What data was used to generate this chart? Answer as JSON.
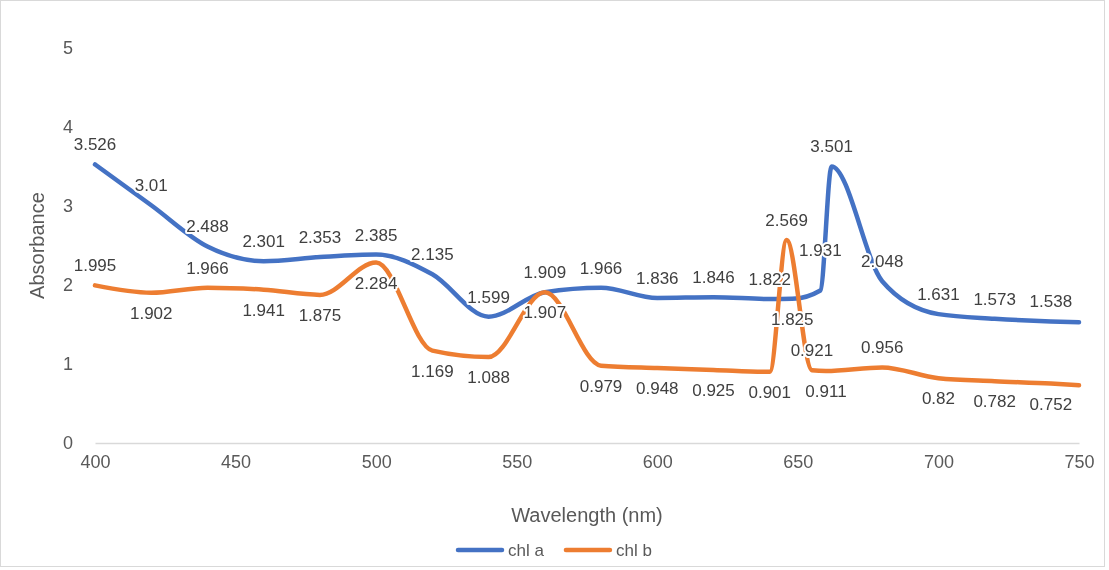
{
  "chart_data": {
    "type": "line",
    "xlabel": "Wavelength (nm)",
    "ylabel": "Absorbance",
    "xlim": [
      400,
      750
    ],
    "xticks": [
      400,
      450,
      500,
      550,
      600,
      650,
      700,
      750
    ],
    "ylim": [
      0,
      5
    ],
    "yticks": [
      0,
      1,
      2,
      3,
      4,
      5
    ],
    "grid": false,
    "legend": "bottom",
    "marker": "none",
    "line_style": "solid",
    "series": [
      {
        "name": "chl a",
        "color": "#4472c4",
        "x": [
          400,
          420,
          440,
          460,
          480,
          500,
          520,
          540,
          560,
          580,
          600,
          620,
          640,
          648,
          658,
          662,
          680,
          700,
          720,
          740,
          750
        ],
        "values": [
          3.526,
          3.01,
          2.488,
          2.301,
          2.353,
          2.385,
          2.135,
          1.599,
          1.909,
          1.966,
          1.836,
          1.846,
          1.822,
          1.825,
          1.931,
          3.501,
          2.048,
          1.631,
          1.573,
          1.538,
          1.53
        ],
        "value_labels": [
          "3.526",
          "3.01",
          "2.488",
          "2.301",
          "2.353",
          "2.385",
          "2.135",
          "1.599",
          "1.909",
          "1.966",
          "1.836",
          "1.846",
          "1.822",
          "1.825",
          "1.931",
          "3.501",
          "2.048",
          "1.631",
          "1.573",
          "1.538",
          null
        ]
      },
      {
        "name": "chl b",
        "color": "#ed7d31",
        "x": [
          400,
          420,
          440,
          460,
          480,
          500,
          520,
          540,
          560,
          580,
          600,
          620,
          640,
          646,
          655,
          660,
          680,
          700,
          720,
          740,
          750
        ],
        "values": [
          1.995,
          1.902,
          1.966,
          1.941,
          1.875,
          2.284,
          1.169,
          1.088,
          1.907,
          0.979,
          0.948,
          0.925,
          0.901,
          2.569,
          0.921,
          0.911,
          0.956,
          0.82,
          0.782,
          0.752,
          0.73
        ],
        "value_labels": [
          "1.995",
          "1.902",
          "1.966",
          "1.941",
          "1.875",
          "2.284",
          "1.169",
          "1.088",
          "1.907",
          "0.979",
          "0.948",
          "0.925",
          "0.901",
          "2.569",
          "0.921",
          "0.911",
          "0.956",
          "0.82",
          "0.782",
          "0.752",
          null
        ]
      }
    ]
  }
}
